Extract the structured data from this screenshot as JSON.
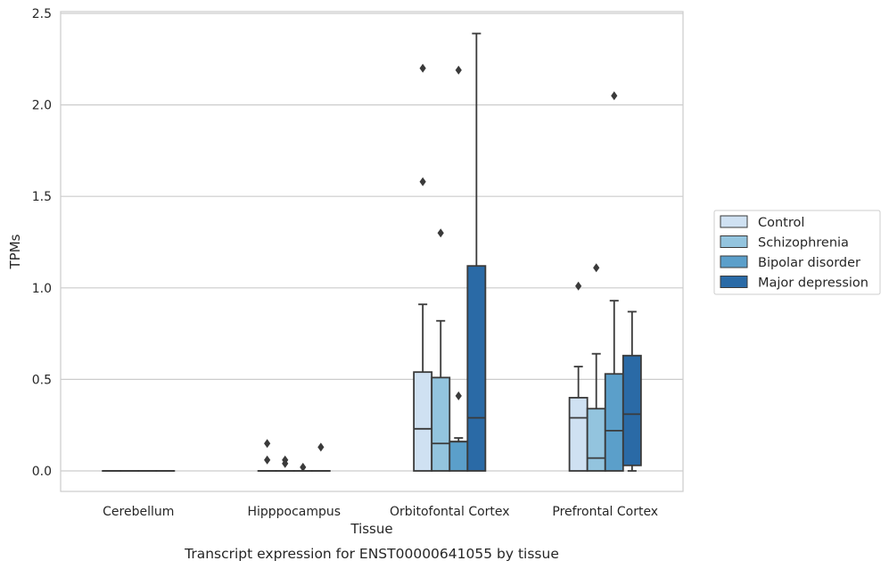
{
  "chart_data": {
    "type": "box",
    "xlabel": "Tissue",
    "ylabel": "TPMs",
    "caption": "Transcript expression for ENST00000641055 by tissue",
    "ylim": [
      -0.12,
      2.52
    ],
    "yticks": [
      "0.0",
      "0.5",
      "1.0",
      "1.5",
      "2.0",
      "2.5"
    ],
    "categories": [
      "Cerebellum",
      "Hipppocampus",
      "Orbitofontal Cortex",
      "Prefrontal Cortex"
    ],
    "grid": true,
    "legend_position": "right-center",
    "series": [
      {
        "name": "Control",
        "color": "#cfe1f2",
        "boxes": [
          {
            "q1": 0,
            "median": 0,
            "q3": 0,
            "whisker_low": 0,
            "whisker_high": 0,
            "outliers": []
          },
          {
            "q1": 0,
            "median": 0,
            "q3": 0,
            "whisker_low": 0,
            "whisker_high": 0,
            "outliers": [
              0.06,
              0.15
            ]
          },
          {
            "q1": 0,
            "median": 0.23,
            "q3": 0.54,
            "whisker_low": 0,
            "whisker_high": 0.91,
            "outliers": [
              1.58,
              2.2
            ]
          },
          {
            "q1": 0,
            "median": 0.29,
            "q3": 0.4,
            "whisker_low": 0,
            "whisker_high": 0.57,
            "outliers": [
              1.01
            ]
          }
        ]
      },
      {
        "name": "Schizophrenia",
        "color": "#93c4de",
        "boxes": [
          {
            "q1": 0,
            "median": 0,
            "q3": 0,
            "whisker_low": 0,
            "whisker_high": 0,
            "outliers": []
          },
          {
            "q1": 0,
            "median": 0,
            "q3": 0,
            "whisker_low": 0,
            "whisker_high": 0,
            "outliers": [
              0.04,
              0.06
            ]
          },
          {
            "q1": 0,
            "median": 0.15,
            "q3": 0.51,
            "whisker_low": 0,
            "whisker_high": 0.82,
            "outliers": [
              1.3
            ]
          },
          {
            "q1": 0,
            "median": 0.07,
            "q3": 0.34,
            "whisker_low": 0,
            "whisker_high": 0.64,
            "outliers": [
              1.11
            ]
          }
        ]
      },
      {
        "name": "Bipolar disorder",
        "color": "#5b9fca",
        "boxes": [
          {
            "q1": 0,
            "median": 0,
            "q3": 0,
            "whisker_low": 0,
            "whisker_high": 0,
            "outliers": []
          },
          {
            "q1": 0,
            "median": 0,
            "q3": 0,
            "whisker_low": 0,
            "whisker_high": 0,
            "outliers": [
              0.02
            ]
          },
          {
            "q1": 0,
            "median": 0.16,
            "q3": 0.16,
            "whisker_low": 0,
            "whisker_high": 0.18,
            "outliers": [
              0.41,
              2.19
            ]
          },
          {
            "q1": 0,
            "median": 0.22,
            "q3": 0.53,
            "whisker_low": 0,
            "whisker_high": 0.93,
            "outliers": [
              2.05
            ]
          }
        ]
      },
      {
        "name": "Major depression",
        "color": "#2a6aa6",
        "boxes": [
          {
            "q1": 0,
            "median": 0,
            "q3": 0,
            "whisker_low": 0,
            "whisker_high": 0,
            "outliers": []
          },
          {
            "q1": 0,
            "median": 0,
            "q3": 0,
            "whisker_low": 0,
            "whisker_high": 0,
            "outliers": [
              0.13
            ]
          },
          {
            "q1": 0,
            "median": 0.29,
            "q3": 1.12,
            "whisker_low": 0,
            "whisker_high": 2.39,
            "outliers": []
          },
          {
            "q1": 0.03,
            "median": 0.31,
            "q3": 0.63,
            "whisker_low": 0,
            "whisker_high": 0.87,
            "outliers": []
          }
        ]
      }
    ]
  }
}
